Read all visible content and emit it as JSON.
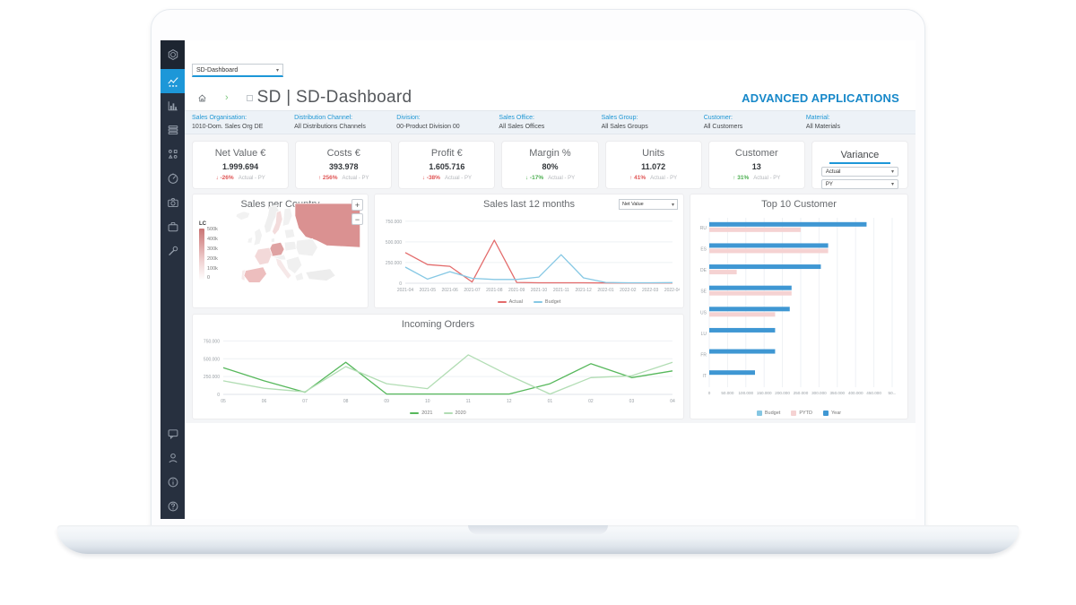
{
  "header": {
    "app_select": "SD-Dashboard",
    "title": "SD | SD-Dashboard",
    "brand": "ADVANCED APPLICATIONS"
  },
  "sidebar": {
    "items": [
      {
        "id": "hex-nut",
        "logo": true
      },
      {
        "id": "analytics",
        "active": true
      },
      {
        "id": "bar-chart"
      },
      {
        "id": "rows"
      },
      {
        "id": "catalog"
      },
      {
        "id": "speedometer"
      },
      {
        "id": "camera"
      },
      {
        "id": "case"
      },
      {
        "id": "wrench"
      }
    ],
    "bottom_items": [
      {
        "id": "chat"
      },
      {
        "id": "user"
      },
      {
        "id": "info"
      },
      {
        "id": "help"
      }
    ]
  },
  "filters": [
    {
      "label": "Sales Organisation:",
      "value": "1010-Dom. Sales Org DE"
    },
    {
      "label": "Distribution Channel:",
      "value": "All Distributions Channels"
    },
    {
      "label": "Division:",
      "value": "00-Product Division 00"
    },
    {
      "label": "Sales Office:",
      "value": "All Sales Offices"
    },
    {
      "label": "Sales Group:",
      "value": "All Sales Groups"
    },
    {
      "label": "Customer:",
      "value": "All Customers"
    },
    {
      "label": "Material:",
      "value": "All Materials"
    }
  ],
  "kpis": [
    {
      "title": "Net Value €",
      "value": "1.999.694",
      "dir": "down",
      "delta": "-26%",
      "delta_color": "#e05555",
      "note": "Actual - PY"
    },
    {
      "title": "Costs €",
      "value": "393.978",
      "dir": "up",
      "delta": "256%",
      "delta_color": "#e05555",
      "note": "Actual - PY"
    },
    {
      "title": "Profit €",
      "value": "1.605.716",
      "dir": "down",
      "delta": "-38%",
      "delta_color": "#e05555",
      "note": "Actual - PY"
    },
    {
      "title": "Margin %",
      "value": "80%",
      "dir": "down",
      "delta": "-17%",
      "delta_color": "#4caf50",
      "note": "Actual - PY"
    },
    {
      "title": "Units",
      "value": "11.072",
      "dir": "up",
      "delta": "41%",
      "delta_color": "#e05555",
      "note": "Actual - PY"
    },
    {
      "title": "Customer",
      "value": "13",
      "dir": "up",
      "delta": "31%",
      "delta_color": "#4caf50",
      "note": "Actual - PY"
    }
  ],
  "variance": {
    "title": "Variance",
    "selects": [
      "Actual",
      "PY"
    ]
  },
  "map": {
    "title": "Sales per Country",
    "legend_unit": "LC",
    "legend_ticks": [
      "500k",
      "400k",
      "300k",
      "200k",
      "100k",
      "0"
    ],
    "zoom_in": "+",
    "zoom_out": "−"
  },
  "colors": {
    "accent_blue": "#1d97d8",
    "brand_blue": "#1788c9",
    "filter_blue": "#1f97d4",
    "negative_red": "#e05555",
    "positive_green": "#4caf50",
    "sidebar_bg": "#27303f"
  },
  "chart_data": [
    {
      "id": "sales12",
      "type": "line",
      "title": "Sales last 12 months",
      "selector": "Net Value",
      "x": [
        "2021-04",
        "2021-05",
        "2021-06",
        "2021-07",
        "2021-08",
        "2021-09",
        "2021-10",
        "2021-11",
        "2021-12",
        "2022-01",
        "2022-02",
        "2022-03",
        "2022-04"
      ],
      "series": [
        {
          "name": "Actual",
          "color": "#e36b6b",
          "values": [
            370000,
            225000,
            205000,
            15000,
            520000,
            10000,
            5000,
            5000,
            5000,
            3000,
            3000,
            3000,
            3000
          ]
        },
        {
          "name": "Budget",
          "color": "#86c8e4",
          "values": [
            195000,
            50000,
            140000,
            60000,
            45000,
            45000,
            75000,
            345000,
            65000,
            10000,
            5000,
            5000,
            8000
          ]
        }
      ],
      "ylim": [
        0,
        780000
      ],
      "yticks": [
        {
          "value": 0,
          "label": "0"
        },
        {
          "value": 250000,
          "label": "250.000"
        },
        {
          "value": 500000,
          "label": "500.000"
        },
        {
          "value": 750000,
          "label": "750.000"
        }
      ],
      "legend_position": "bottom",
      "grid": true
    },
    {
      "id": "incoming",
      "type": "line",
      "title": "Incoming Orders",
      "x": [
        "05",
        "06",
        "07",
        "08",
        "09",
        "10",
        "11",
        "12",
        "01",
        "02",
        "03",
        "04"
      ],
      "series": [
        {
          "name": "2021",
          "color": "#57b85c",
          "values": [
            375000,
            190000,
            30000,
            450000,
            5000,
            5000,
            5000,
            5000,
            150000,
            430000,
            235000,
            330000
          ]
        },
        {
          "name": "2020",
          "color": "#b2ddb4",
          "values": [
            190000,
            85000,
            35000,
            390000,
            150000,
            80000,
            555000,
            265000,
            5000,
            235000,
            260000,
            450000
          ]
        }
      ],
      "ylim": [
        0,
        780000
      ],
      "yticks": [
        {
          "value": 0,
          "label": "0"
        },
        {
          "value": 250000,
          "label": "250.000"
        },
        {
          "value": 500000,
          "label": "500.000"
        },
        {
          "value": 750000,
          "label": "750.000"
        }
      ],
      "legend_position": "bottom",
      "grid": true
    },
    {
      "id": "top10",
      "type": "bar",
      "title": "Top 10 Customer",
      "categories": [
        "RU",
        "ES",
        "DE",
        "SE",
        "US",
        "LU",
        "FR",
        "IT"
      ],
      "series": [
        {
          "name": "Budget",
          "color": "#85c6e2",
          "values": [
            0,
            0,
            0,
            0,
            0,
            0,
            0,
            0
          ]
        },
        {
          "name": "PYTD",
          "color": "#f5d2d2",
          "values": [
            250000,
            325000,
            75000,
            225000,
            180000,
            0,
            0,
            0
          ]
        },
        {
          "name": "Year",
          "color": "#3f97d3",
          "values": [
            430000,
            325000,
            305000,
            225000,
            220000,
            180000,
            180000,
            125000
          ]
        }
      ],
      "xlim": [
        0,
        500000
      ],
      "xticks": [
        "0",
        "50.000",
        "100.000",
        "150.000",
        "200.000",
        "250.000",
        "300.000",
        "350.000",
        "400.000",
        "450.000",
        "50..."
      ],
      "legend_position": "bottom",
      "grid": true
    }
  ]
}
